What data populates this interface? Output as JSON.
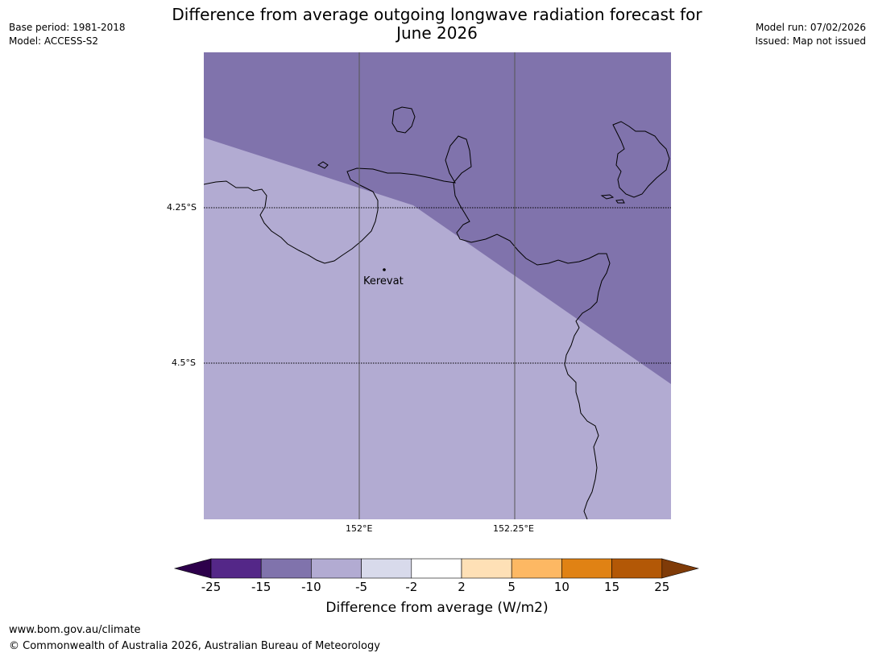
{
  "title": "Difference from average outgoing longwave radiation forecast for June 2026",
  "header_left": {
    "base_period": "Base period: 1981-2018",
    "model": "Model: ACCESS-S2"
  },
  "header_right": {
    "model_run": "Model run: 07/02/2026",
    "issued": "Issued: Map not issued"
  },
  "map": {
    "lat_labels": [
      "4.25°S",
      "4.5°S"
    ],
    "lon_labels": [
      "152°E",
      "152.25°E"
    ],
    "place": "Kerevat",
    "colors": {
      "dark_zone": "#8073ac",
      "light_zone": "#b2abd2",
      "coastline": "#000000"
    }
  },
  "colorbar": {
    "label": "Difference from average (W/m2)",
    "ticks": [
      "-25",
      "-15",
      "-10",
      "-5",
      "-2",
      "2",
      "5",
      "10",
      "15",
      "25"
    ],
    "colors": [
      "#2d004b",
      "#542788",
      "#8073ac",
      "#b2abd2",
      "#d8daeb",
      "#ffffff",
      "#fee0b6",
      "#fdb863",
      "#e08214",
      "#b35806",
      "#7f3b08"
    ]
  },
  "footer": {
    "url": "www.bom.gov.au/climate",
    "copyright": "© Commonwealth of Australia 2026, Australian Bureau of Meteorology"
  }
}
